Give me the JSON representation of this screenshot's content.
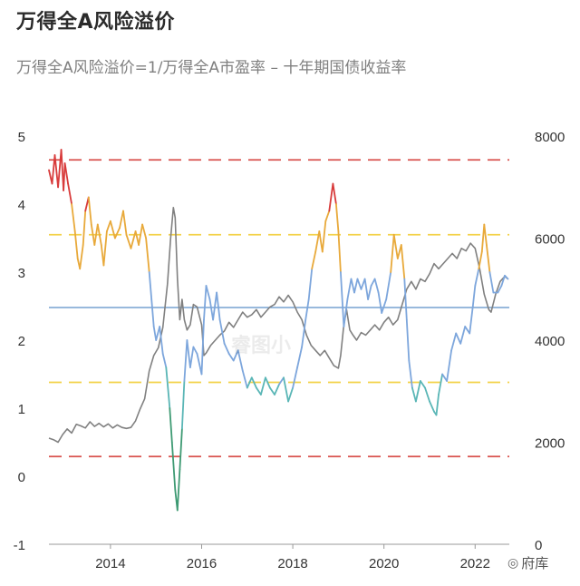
{
  "title": "万得全A风险溢价",
  "subtitle": "万得全A风险溢价=1/万得全A市盈率 – 十年期国债收益率",
  "watermark": "睿图小",
  "brand": "府库",
  "colors": {
    "red": "#d83b3b",
    "orange": "#e8a93a",
    "blue": "#7da6dc",
    "teal": "#5ab6b6",
    "green": "#3e9a73",
    "gray": "#808080",
    "mean_line": "#5b8fc6",
    "yellow_dashed": "#f3d24a",
    "red_dashed": "#d9534f"
  },
  "chart_data": {
    "type": "line",
    "x_ticks": [
      "2014",
      "2016",
      "2018",
      "2020",
      "2022"
    ],
    "xlim": [
      2012.65,
      2022.75
    ],
    "y_left": {
      "ticks": [
        "5",
        "4",
        "3",
        "2",
        "1",
        "0",
        "-1"
      ],
      "ylim": [
        -1,
        5
      ]
    },
    "y_right": {
      "ticks": [
        "8000",
        "6000",
        "4000",
        "2000",
        "0"
      ],
      "ylim": [
        0,
        8000
      ]
    },
    "reference_lines": [
      {
        "value": 4.65,
        "style": "dashed",
        "color": "red"
      },
      {
        "value": 3.55,
        "style": "dashed",
        "color": "yellow"
      },
      {
        "value": 2.48,
        "style": "solid",
        "color": "mean_line"
      },
      {
        "value": 1.38,
        "style": "dashed",
        "color": "yellow"
      },
      {
        "value": 0.29,
        "style": "dashed",
        "color": "red"
      }
    ],
    "series": [
      {
        "axis": "left",
        "points": [
          [
            2012.65,
            4.5
          ],
          [
            2012.72,
            4.3
          ],
          [
            2012.78,
            4.72
          ],
          [
            2012.85,
            4.25
          ],
          [
            2012.92,
            4.8
          ],
          [
            2012.97,
            4.2
          ],
          [
            2013.0,
            4.6
          ],
          [
            2013.07,
            4.3
          ],
          [
            2013.15,
            4.0
          ],
          [
            2013.22,
            3.6
          ],
          [
            2013.28,
            3.2
          ],
          [
            2013.33,
            3.05
          ],
          [
            2013.4,
            3.4
          ],
          [
            2013.45,
            3.9
          ],
          [
            2013.52,
            4.1
          ],
          [
            2013.58,
            3.7
          ],
          [
            2013.65,
            3.4
          ],
          [
            2013.72,
            3.7
          ],
          [
            2013.8,
            3.4
          ],
          [
            2013.85,
            3.1
          ],
          [
            2013.92,
            3.6
          ],
          [
            2014.0,
            3.75
          ],
          [
            2014.1,
            3.5
          ],
          [
            2014.2,
            3.65
          ],
          [
            2014.28,
            3.9
          ],
          [
            2014.35,
            3.55
          ],
          [
            2014.45,
            3.35
          ],
          [
            2014.55,
            3.6
          ],
          [
            2014.62,
            3.4
          ],
          [
            2014.7,
            3.7
          ],
          [
            2014.78,
            3.5
          ],
          [
            2014.85,
            3.0
          ],
          [
            2014.9,
            2.6
          ],
          [
            2014.95,
            2.2
          ],
          [
            2015.0,
            2.0
          ],
          [
            2015.08,
            2.2
          ],
          [
            2015.15,
            1.8
          ],
          [
            2015.22,
            1.6
          ],
          [
            2015.3,
            1.0
          ],
          [
            2015.35,
            0.5
          ],
          [
            2015.42,
            -0.2
          ],
          [
            2015.47,
            -0.5
          ],
          [
            2015.52,
            0.1
          ],
          [
            2015.57,
            0.7
          ],
          [
            2015.62,
            1.4
          ],
          [
            2015.68,
            2.0
          ],
          [
            2015.75,
            1.6
          ],
          [
            2015.82,
            1.9
          ],
          [
            2015.9,
            1.8
          ],
          [
            2016.0,
            1.5
          ],
          [
            2016.05,
            2.3
          ],
          [
            2016.1,
            2.8
          ],
          [
            2016.18,
            2.6
          ],
          [
            2016.25,
            2.3
          ],
          [
            2016.33,
            2.7
          ],
          [
            2016.4,
            2.3
          ],
          [
            2016.5,
            1.95
          ],
          [
            2016.6,
            1.8
          ],
          [
            2016.7,
            1.7
          ],
          [
            2016.8,
            1.85
          ],
          [
            2016.9,
            1.55
          ],
          [
            2017.0,
            1.3
          ],
          [
            2017.1,
            1.45
          ],
          [
            2017.2,
            1.3
          ],
          [
            2017.3,
            1.2
          ],
          [
            2017.4,
            1.45
          ],
          [
            2017.5,
            1.3
          ],
          [
            2017.6,
            1.2
          ],
          [
            2017.7,
            1.35
          ],
          [
            2017.8,
            1.45
          ],
          [
            2017.9,
            1.1
          ],
          [
            2018.0,
            1.3
          ],
          [
            2018.1,
            1.6
          ],
          [
            2018.2,
            1.9
          ],
          [
            2018.28,
            2.3
          ],
          [
            2018.35,
            2.6
          ],
          [
            2018.42,
            3.05
          ],
          [
            2018.5,
            3.3
          ],
          [
            2018.58,
            3.6
          ],
          [
            2018.65,
            3.3
          ],
          [
            2018.72,
            3.75
          ],
          [
            2018.8,
            3.9
          ],
          [
            2018.88,
            4.3
          ],
          [
            2018.95,
            4.0
          ],
          [
            2019.0,
            3.6
          ],
          [
            2019.05,
            3.0
          ],
          [
            2019.12,
            2.2
          ],
          [
            2019.2,
            2.6
          ],
          [
            2019.28,
            2.9
          ],
          [
            2019.35,
            2.7
          ],
          [
            2019.42,
            2.9
          ],
          [
            2019.5,
            2.75
          ],
          [
            2019.58,
            2.9
          ],
          [
            2019.65,
            2.6
          ],
          [
            2019.72,
            2.8
          ],
          [
            2019.8,
            2.9
          ],
          [
            2019.88,
            2.7
          ],
          [
            2019.95,
            2.4
          ],
          [
            2020.05,
            2.6
          ],
          [
            2020.15,
            3.0
          ],
          [
            2020.22,
            3.55
          ],
          [
            2020.3,
            3.2
          ],
          [
            2020.38,
            3.4
          ],
          [
            2020.45,
            2.9
          ],
          [
            2020.5,
            2.3
          ],
          [
            2020.55,
            1.7
          ],
          [
            2020.62,
            1.3
          ],
          [
            2020.7,
            1.1
          ],
          [
            2020.8,
            1.4
          ],
          [
            2020.9,
            1.3
          ],
          [
            2021.0,
            1.1
          ],
          [
            2021.1,
            0.95
          ],
          [
            2021.15,
            0.9
          ],
          [
            2021.2,
            1.2
          ],
          [
            2021.28,
            1.5
          ],
          [
            2021.38,
            1.4
          ],
          [
            2021.48,
            1.85
          ],
          [
            2021.58,
            2.1
          ],
          [
            2021.68,
            1.95
          ],
          [
            2021.78,
            2.2
          ],
          [
            2021.88,
            2.1
          ],
          [
            2021.95,
            2.5
          ],
          [
            2022.0,
            2.8
          ],
          [
            2022.08,
            3.05
          ],
          [
            2022.15,
            3.3
          ],
          [
            2022.2,
            3.7
          ],
          [
            2022.25,
            3.4
          ],
          [
            2022.32,
            3.0
          ],
          [
            2022.4,
            2.7
          ],
          [
            2022.5,
            2.7
          ],
          [
            2022.58,
            2.8
          ],
          [
            2022.65,
            2.95
          ],
          [
            2022.72,
            2.9
          ]
        ]
      },
      {
        "axis": "right",
        "points": [
          [
            2012.65,
            2080
          ],
          [
            2012.75,
            2050
          ],
          [
            2012.85,
            2000
          ],
          [
            2012.95,
            2150
          ],
          [
            2013.05,
            2260
          ],
          [
            2013.15,
            2180
          ],
          [
            2013.25,
            2350
          ],
          [
            2013.35,
            2320
          ],
          [
            2013.45,
            2280
          ],
          [
            2013.55,
            2400
          ],
          [
            2013.65,
            2310
          ],
          [
            2013.75,
            2370
          ],
          [
            2013.85,
            2300
          ],
          [
            2013.95,
            2360
          ],
          [
            2014.05,
            2280
          ],
          [
            2014.15,
            2340
          ],
          [
            2014.25,
            2290
          ],
          [
            2014.35,
            2270
          ],
          [
            2014.45,
            2290
          ],
          [
            2014.55,
            2420
          ],
          [
            2014.65,
            2650
          ],
          [
            2014.75,
            2850
          ],
          [
            2014.85,
            3400
          ],
          [
            2014.95,
            3700
          ],
          [
            2015.05,
            3850
          ],
          [
            2015.15,
            4250
          ],
          [
            2015.25,
            5100
          ],
          [
            2015.32,
            6000
          ],
          [
            2015.38,
            6600
          ],
          [
            2015.42,
            6400
          ],
          [
            2015.47,
            5200
          ],
          [
            2015.52,
            4400
          ],
          [
            2015.57,
            4800
          ],
          [
            2015.62,
            4400
          ],
          [
            2015.68,
            4200
          ],
          [
            2015.75,
            4300
          ],
          [
            2015.82,
            4700
          ],
          [
            2015.9,
            4650
          ],
          [
            2016.0,
            4300
          ],
          [
            2016.05,
            3700
          ],
          [
            2016.1,
            3750
          ],
          [
            2016.2,
            3900
          ],
          [
            2016.3,
            4000
          ],
          [
            2016.4,
            4100
          ],
          [
            2016.5,
            4180
          ],
          [
            2016.6,
            4350
          ],
          [
            2016.7,
            4250
          ],
          [
            2016.8,
            4400
          ],
          [
            2016.9,
            4550
          ],
          [
            2017.0,
            4450
          ],
          [
            2017.1,
            4500
          ],
          [
            2017.2,
            4600
          ],
          [
            2017.3,
            4450
          ],
          [
            2017.4,
            4550
          ],
          [
            2017.5,
            4650
          ],
          [
            2017.6,
            4700
          ],
          [
            2017.7,
            4850
          ],
          [
            2017.8,
            4750
          ],
          [
            2017.9,
            4880
          ],
          [
            2018.0,
            4750
          ],
          [
            2018.1,
            4550
          ],
          [
            2018.2,
            4400
          ],
          [
            2018.3,
            4100
          ],
          [
            2018.4,
            3900
          ],
          [
            2018.5,
            3800
          ],
          [
            2018.6,
            3700
          ],
          [
            2018.7,
            3800
          ],
          [
            2018.8,
            3650
          ],
          [
            2018.9,
            3500
          ],
          [
            2019.0,
            3450
          ],
          [
            2019.05,
            3700
          ],
          [
            2019.12,
            4300
          ],
          [
            2019.18,
            4600
          ],
          [
            2019.25,
            4200
          ],
          [
            2019.32,
            4100
          ],
          [
            2019.4,
            4000
          ],
          [
            2019.5,
            4150
          ],
          [
            2019.6,
            4100
          ],
          [
            2019.7,
            4200
          ],
          [
            2019.8,
            4300
          ],
          [
            2019.9,
            4200
          ],
          [
            2020.0,
            4350
          ],
          [
            2020.1,
            4450
          ],
          [
            2020.2,
            4300
          ],
          [
            2020.3,
            4400
          ],
          [
            2020.4,
            4700
          ],
          [
            2020.5,
            5000
          ],
          [
            2020.6,
            5150
          ],
          [
            2020.7,
            5000
          ],
          [
            2020.8,
            5200
          ],
          [
            2020.9,
            5150
          ],
          [
            2021.0,
            5300
          ],
          [
            2021.1,
            5500
          ],
          [
            2021.2,
            5400
          ],
          [
            2021.3,
            5500
          ],
          [
            2021.4,
            5600
          ],
          [
            2021.5,
            5700
          ],
          [
            2021.6,
            5600
          ],
          [
            2021.7,
            5800
          ],
          [
            2021.8,
            5750
          ],
          [
            2021.9,
            5900
          ],
          [
            2022.0,
            5800
          ],
          [
            2022.1,
            5400
          ],
          [
            2022.2,
            4900
          ],
          [
            2022.3,
            4600
          ],
          [
            2022.35,
            4550
          ],
          [
            2022.45,
            4900
          ],
          [
            2022.55,
            5150
          ],
          [
            2022.65,
            5250
          ],
          [
            2022.72,
            5200
          ]
        ]
      }
    ]
  }
}
